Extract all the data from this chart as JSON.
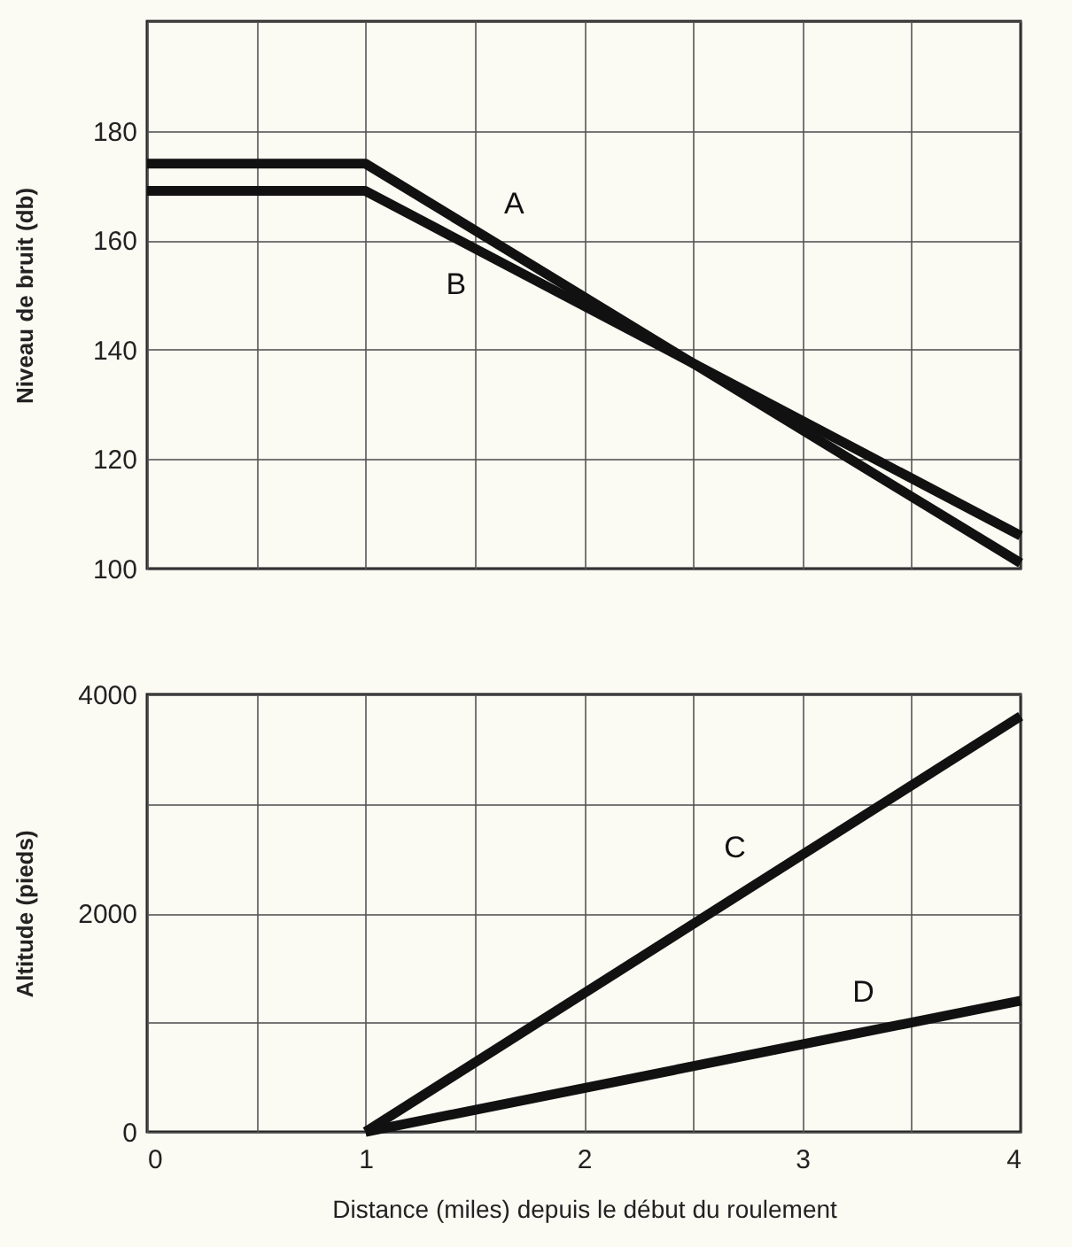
{
  "chart_data": [
    {
      "type": "line",
      "ylabel": "Niveau de bruit (db)",
      "xlim": [
        0,
        4
      ],
      "ylim": [
        100,
        200
      ],
      "tick_labels": "y",
      "grid": true,
      "line_style": "solid",
      "marker": "none",
      "xticks": [
        0,
        {
          "value": 0.5,
          "label": null
        },
        1,
        {
          "value": 1.5,
          "label": null
        },
        2,
        {
          "value": 2.5,
          "label": null
        },
        3,
        {
          "value": 3.5,
          "label": null
        },
        4
      ],
      "yticks": [
        100,
        120,
        140,
        160,
        180,
        {
          "value": 200,
          "label": null
        }
      ],
      "series": [
        {
          "name": "A",
          "color": "#111111",
          "x": [
            0,
            1,
            4
          ],
          "values": [
            174,
            174,
            101
          ]
        },
        {
          "name": "B",
          "color": "#111111",
          "x": [
            0,
            1,
            4
          ],
          "values": [
            169,
            169,
            106
          ]
        }
      ]
    },
    {
      "type": "line",
      "xlabel": "Distance (miles) depuis le début du roulement",
      "ylabel": "Altitude (pieds)",
      "xlim": [
        0,
        4
      ],
      "ylim": [
        0,
        4000
      ],
      "grid": true,
      "line_style": "solid",
      "marker": "none",
      "xticks": [
        0,
        {
          "value": 0.5,
          "label": null
        },
        1,
        {
          "value": 1.5,
          "label": null
        },
        2,
        {
          "value": 2.5,
          "label": null
        },
        3,
        {
          "value": 3.5,
          "label": null
        },
        4
      ],
      "yticks": [
        0,
        {
          "value": 1000,
          "label": null
        },
        2000,
        {
          "value": 3000,
          "label": null
        },
        4000
      ],
      "series": [
        {
          "name": "C",
          "color": "#111111",
          "x": [
            1,
            4
          ],
          "values": [
            0,
            3800
          ]
        },
        {
          "name": "D",
          "color": "#111111",
          "x": [
            1,
            4
          ],
          "values": [
            0,
            1200
          ]
        }
      ]
    }
  ]
}
